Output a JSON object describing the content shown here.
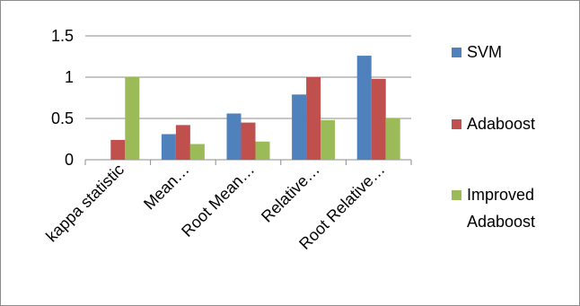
{
  "chart_data": {
    "type": "bar",
    "categories": [
      "kappa statistic",
      "Mean…",
      "Root Mean…",
      "Relative…",
      "Root Relative…"
    ],
    "series": [
      {
        "name": "SVM",
        "color": "#4f81bd",
        "values": [
          0,
          0.31,
          0.56,
          0.79,
          1.26
        ]
      },
      {
        "name": "Adaboost",
        "color": "#c0504d",
        "values": [
          0.24,
          0.42,
          0.45,
          1.0,
          0.98
        ]
      },
      {
        "name": "Improved Adaboost",
        "color": "#9bbb59",
        "values": [
          1.0,
          0.19,
          0.22,
          0.48,
          0.5
        ]
      }
    ],
    "yticks": [
      "0",
      "0.5",
      "1",
      "1.5"
    ],
    "ylim": [
      0,
      1.5
    ],
    "grid": true,
    "legend_position": "right",
    "title": "",
    "xlabel": "",
    "ylabel": ""
  }
}
